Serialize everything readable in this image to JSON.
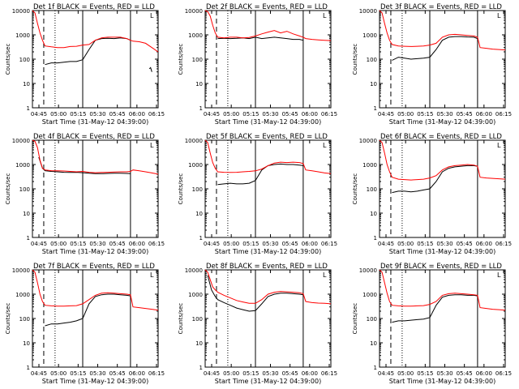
{
  "figure": {
    "background": "#ffffff",
    "axis_color": "#000000"
  },
  "shared": {
    "title_template": "Det {n}f BLACK = Events, RED = LLD",
    "xlabel": "Start Time (31-May-12 04:39:00)",
    "ylabel": "Counts/sec",
    "x_ticks": [
      "04:45",
      "05:00",
      "05:15",
      "05:30",
      "05:45",
      "06:00",
      "06:15"
    ],
    "y_ticks": [
      "1",
      "10",
      "100",
      "1000",
      "10000"
    ],
    "y_scale": "log",
    "ylim": [
      1,
      10000
    ],
    "xlim_minutes": [
      0,
      100
    ],
    "vlines": {
      "dashed": 9,
      "dotted": 18,
      "solid_1": 40,
      "solid_2": 78
    },
    "series": [
      {
        "name": "BLACK = Events",
        "color": "#000000"
      },
      {
        "name": "RED = LLD",
        "color": "#ff0000"
      }
    ]
  },
  "chart_data": [
    {
      "type": "line",
      "title": "Det 1f BLACK = Events, RED = LLD",
      "xlabel": "Start Time (31-May-12 04:39:00)",
      "ylabel": "Counts/sec",
      "series": [
        {
          "name": "Events",
          "color": "#000000",
          "x": [
            8,
            10,
            15,
            20,
            25,
            30,
            35,
            40,
            45,
            50,
            55,
            60,
            65,
            70,
            75,
            78,
            80,
            85,
            90,
            92,
            93,
            94,
            95
          ],
          "y": [
            null,
            60,
            70,
            70,
            75,
            80,
            80,
            95,
            250,
            600,
            700,
            720,
            700,
            750,
            700,
            600,
            null,
            null,
            null,
            null,
            40,
            45,
            30
          ]
        },
        {
          "name": "LLD",
          "color": "#ff0000",
          "x": [
            0,
            2,
            4,
            6,
            8,
            10,
            15,
            20,
            25,
            30,
            35,
            40,
            45,
            50,
            55,
            60,
            65,
            70,
            75,
            78,
            80,
            85,
            90,
            95,
            100
          ],
          "y": [
            10000,
            8000,
            3000,
            1200,
            600,
            350,
            320,
            300,
            300,
            330,
            340,
            380,
            400,
            600,
            750,
            800,
            800,
            800,
            700,
            600,
            550,
            520,
            450,
            300,
            200
          ]
        }
      ]
    },
    {
      "type": "line",
      "title": "Det 2f BLACK = Events, RED = LLD",
      "xlabel": "Start Time (31-May-12 04:39:00)",
      "ylabel": "Counts/sec",
      "series": [
        {
          "name": "Events",
          "color": "#000000",
          "x": [
            8,
            10,
            15,
            20,
            25,
            30,
            35,
            40,
            45,
            50,
            55,
            60,
            65,
            70,
            75,
            78,
            80
          ],
          "y": [
            null,
            700,
            720,
            700,
            720,
            750,
            700,
            800,
            700,
            750,
            800,
            750,
            700,
            650,
            650,
            600,
            null
          ]
        },
        {
          "name": "LLD",
          "color": "#ff0000",
          "x": [
            0,
            2,
            4,
            6,
            8,
            10,
            15,
            20,
            25,
            30,
            35,
            40,
            45,
            50,
            55,
            60,
            65,
            70,
            75,
            78,
            80,
            85,
            90,
            95,
            100
          ],
          "y": [
            10000,
            9000,
            6000,
            2500,
            1200,
            800,
            750,
            800,
            800,
            750,
            780,
            900,
            1100,
            1300,
            1500,
            1200,
            1400,
            1100,
            900,
            800,
            700,
            650,
            620,
            600,
            580
          ]
        }
      ]
    },
    {
      "type": "line",
      "title": "Det 3f BLACK = Events, RED = LLD",
      "xlabel": "Start Time (31-May-12 04:39:00)",
      "ylabel": "Counts/sec",
      "series": [
        {
          "name": "Events",
          "color": "#000000",
          "x": [
            8,
            10,
            15,
            20,
            25,
            30,
            35,
            40,
            45,
            50,
            55,
            60,
            65,
            70,
            75,
            78,
            80
          ],
          "y": [
            null,
            90,
            120,
            110,
            100,
            105,
            110,
            120,
            250,
            600,
            800,
            850,
            850,
            820,
            800,
            700,
            null
          ]
        },
        {
          "name": "LLD",
          "color": "#ff0000",
          "x": [
            0,
            2,
            4,
            6,
            8,
            10,
            15,
            20,
            25,
            30,
            35,
            40,
            45,
            50,
            55,
            60,
            65,
            70,
            75,
            78,
            80,
            85,
            90,
            95,
            100
          ],
          "y": [
            10000,
            8000,
            3000,
            1200,
            600,
            400,
            350,
            340,
            330,
            340,
            350,
            380,
            450,
            800,
            1000,
            1050,
            1000,
            950,
            900,
            800,
            300,
            280,
            260,
            250,
            240
          ]
        }
      ]
    },
    {
      "type": "line",
      "title": "Det 4f BLACK = Events, RED = LLD",
      "xlabel": "Start Time (31-May-12 04:39:00)",
      "ylabel": "Counts/sec",
      "series": [
        {
          "name": "Events",
          "color": "#000000",
          "x": [
            5,
            8,
            10,
            15,
            20,
            25,
            30,
            35,
            40,
            45,
            50,
            55,
            60,
            65,
            70,
            75,
            78,
            80
          ],
          "y": [
            2000,
            700,
            560,
            520,
            500,
            480,
            470,
            480,
            460,
            440,
            420,
            420,
            430,
            440,
            440,
            430,
            420,
            null
          ]
        },
        {
          "name": "LLD",
          "color": "#ff0000",
          "x": [
            0,
            2,
            4,
            6,
            8,
            10,
            15,
            20,
            25,
            30,
            35,
            40,
            45,
            50,
            55,
            60,
            65,
            70,
            75,
            78,
            80,
            85,
            90,
            95,
            100
          ],
          "y": [
            10000,
            9000,
            5000,
            1500,
            700,
            600,
            560,
            550,
            540,
            520,
            500,
            520,
            480,
            460,
            470,
            480,
            490,
            500,
            500,
            520,
            600,
            550,
            500,
            450,
            400
          ]
        }
      ]
    },
    {
      "type": "line",
      "title": "Det 5f BLACK = Events, RED = LLD",
      "xlabel": "Start Time (31-May-12 04:39:00)",
      "ylabel": "Counts/sec",
      "series": [
        {
          "name": "Events",
          "color": "#000000",
          "x": [
            8,
            10,
            15,
            20,
            25,
            30,
            35,
            40,
            45,
            50,
            55,
            60,
            65,
            70,
            75,
            78,
            80
          ],
          "y": [
            null,
            150,
            160,
            170,
            160,
            160,
            170,
            220,
            600,
            900,
            1000,
            1050,
            1000,
            1000,
            950,
            900,
            null
          ]
        },
        {
          "name": "LLD",
          "color": "#ff0000",
          "x": [
            0,
            2,
            4,
            6,
            8,
            10,
            15,
            20,
            25,
            30,
            35,
            40,
            45,
            50,
            55,
            60,
            65,
            70,
            75,
            78,
            80,
            85,
            90,
            95,
            100
          ],
          "y": [
            10000,
            8000,
            3000,
            1200,
            700,
            500,
            480,
            470,
            480,
            500,
            520,
            550,
            650,
            900,
            1150,
            1250,
            1200,
            1250,
            1200,
            1100,
            600,
            550,
            500,
            450,
            420
          ]
        }
      ]
    },
    {
      "type": "line",
      "title": "Det 6f BLACK = Events, RED = LLD",
      "xlabel": "Start Time (31-May-12 04:39:00)",
      "ylabel": "Counts/sec",
      "series": [
        {
          "name": "Events",
          "color": "#000000",
          "x": [
            8,
            10,
            15,
            20,
            25,
            30,
            35,
            40,
            45,
            50,
            55,
            60,
            65,
            70,
            75,
            78,
            80,
            82,
            85,
            88,
            90
          ],
          "y": [
            null,
            70,
            80,
            80,
            75,
            80,
            90,
            100,
            200,
            500,
            700,
            800,
            850,
            900,
            900,
            850,
            null,
            null,
            null,
            null,
            null
          ]
        },
        {
          "name": "LLD",
          "color": "#ff0000",
          "x": [
            0,
            2,
            4,
            6,
            8,
            10,
            15,
            20,
            25,
            30,
            35,
            40,
            45,
            50,
            55,
            60,
            65,
            70,
            75,
            78,
            80,
            85,
            90,
            95,
            100
          ],
          "y": [
            10000,
            8000,
            3000,
            1000,
            500,
            300,
            250,
            240,
            230,
            240,
            250,
            280,
            350,
            600,
            800,
            900,
            950,
            1000,
            950,
            850,
            300,
            280,
            270,
            260,
            250
          ]
        }
      ]
    },
    {
      "type": "line",
      "title": "Det 7f BLACK = Events, RED = LLD",
      "xlabel": "Start Time (31-May-12 04:39:00)",
      "ylabel": "Counts/sec",
      "series": [
        {
          "name": "Events",
          "color": "#000000",
          "x": [
            8,
            10,
            15,
            20,
            25,
            30,
            35,
            40,
            45,
            50,
            55,
            60,
            65,
            70,
            75,
            78,
            80
          ],
          "y": [
            null,
            50,
            60,
            60,
            65,
            70,
            80,
            100,
            400,
            800,
            950,
            1000,
            1000,
            950,
            900,
            850,
            null
          ]
        },
        {
          "name": "LLD",
          "color": "#ff0000",
          "x": [
            0,
            2,
            4,
            6,
            8,
            10,
            15,
            20,
            25,
            30,
            35,
            40,
            45,
            50,
            55,
            60,
            65,
            70,
            75,
            78,
            80,
            85,
            90,
            95,
            100
          ],
          "y": [
            10000,
            8000,
            3000,
            1000,
            500,
            350,
            330,
            320,
            320,
            330,
            340,
            400,
            600,
            900,
            1100,
            1150,
            1100,
            1050,
            1000,
            950,
            300,
            280,
            260,
            240,
            220
          ]
        }
      ]
    },
    {
      "type": "line",
      "title": "Det 8f BLACK = Events, RED = LLD",
      "xlabel": "Start Time (31-May-12 04:39:00)",
      "ylabel": "Counts/sec",
      "series": [
        {
          "name": "Events",
          "color": "#000000",
          "x": [
            2,
            5,
            8,
            10,
            15,
            20,
            25,
            30,
            35,
            40,
            45,
            50,
            55,
            60,
            65,
            70,
            75,
            78,
            80
          ],
          "y": [
            6000,
            1500,
            800,
            600,
            450,
            350,
            270,
            230,
            200,
            210,
            400,
            800,
            1000,
            1100,
            1100,
            1050,
            1000,
            950,
            null
          ]
        },
        {
          "name": "LLD",
          "color": "#ff0000",
          "x": [
            0,
            2,
            4,
            6,
            8,
            10,
            15,
            20,
            25,
            30,
            35,
            40,
            45,
            50,
            55,
            60,
            65,
            70,
            75,
            78,
            80,
            85,
            90,
            95,
            100
          ],
          "y": [
            10000,
            8000,
            4000,
            2000,
            1500,
            1200,
            900,
            700,
            550,
            480,
            420,
            420,
            600,
            1000,
            1200,
            1300,
            1250,
            1200,
            1150,
            1050,
            500,
            450,
            430,
            420,
            400
          ]
        }
      ]
    },
    {
      "type": "line",
      "title": "Det 9f BLACK = Events, RED = LLD",
      "xlabel": "Start Time (31-May-12 04:39:00)",
      "ylabel": "Counts/sec",
      "series": [
        {
          "name": "Events",
          "color": "#000000",
          "x": [
            8,
            10,
            15,
            20,
            25,
            30,
            35,
            40,
            45,
            50,
            55,
            60,
            65,
            70,
            75,
            78,
            80
          ],
          "y": [
            null,
            70,
            80,
            80,
            85,
            90,
            95,
            110,
            350,
            750,
            900,
            950,
            950,
            900,
            900,
            850,
            null
          ]
        },
        {
          "name": "LLD",
          "color": "#ff0000",
          "x": [
            0,
            2,
            4,
            6,
            8,
            10,
            15,
            20,
            25,
            30,
            35,
            40,
            45,
            50,
            55,
            60,
            65,
            70,
            75,
            78,
            80,
            85,
            90,
            95,
            100
          ],
          "y": [
            10000,
            8000,
            3000,
            1100,
            500,
            350,
            330,
            320,
            320,
            330,
            340,
            380,
            500,
            900,
            1050,
            1100,
            1050,
            1000,
            950,
            900,
            280,
            260,
            240,
            230,
            220
          ]
        }
      ]
    }
  ]
}
